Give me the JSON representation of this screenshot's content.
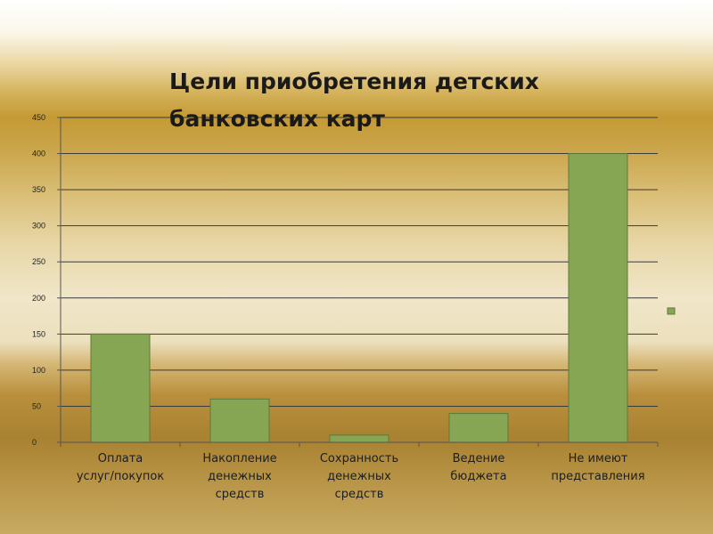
{
  "chart_data": {
    "type": "bar",
    "title_lines": [
      "Цели приобретения детских",
      "банковских карт"
    ],
    "categories": [
      [
        "Оплата",
        "услуг/покупок"
      ],
      [
        "Накопление",
        "денежных",
        "средств"
      ],
      [
        "Сохранность",
        "денежных",
        "средств"
      ],
      [
        "Ведение",
        "бюджета"
      ],
      [
        "Не имеют",
        "представления"
      ]
    ],
    "values": [
      150,
      60,
      10,
      40,
      400
    ],
    "ylim": [
      0,
      450
    ],
    "yticks": [
      "0",
      "50",
      "100",
      "150",
      "200",
      "250",
      "300",
      "350",
      "400",
      "450"
    ],
    "grid": true,
    "legend": "right",
    "colors": {
      "bar": "#86a654",
      "bar_edge": "#5f7a38",
      "grid": "#3a3a3a",
      "axis": "#555555"
    }
  }
}
